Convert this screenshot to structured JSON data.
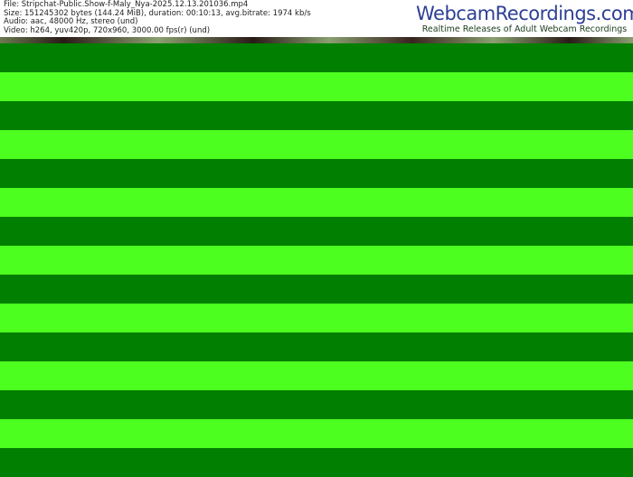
{
  "header": {
    "file": "File: Stripchat-Public.Show-f-Maly_Nya-2025.12.13.201036.mp4",
    "size": "Size: 151245302 bytes (144.24 MiB), duration: 00:10:13, avg.bitrate: 1974 kb/s",
    "audio": "Audio: aac, 48000 Hz, stereo (und)",
    "video": "Video: h264, yuv420p, 720x960, 3000.00 fps(r) (und)"
  },
  "logo": {
    "title": "WebcamRecordings.com",
    "tagline": "Realtime Releases of Adult Webcam Recordings"
  },
  "colors": {
    "dark_green": "#007f00",
    "bright_green": "#4cff1f",
    "logo_blue": "#2d3f94"
  }
}
